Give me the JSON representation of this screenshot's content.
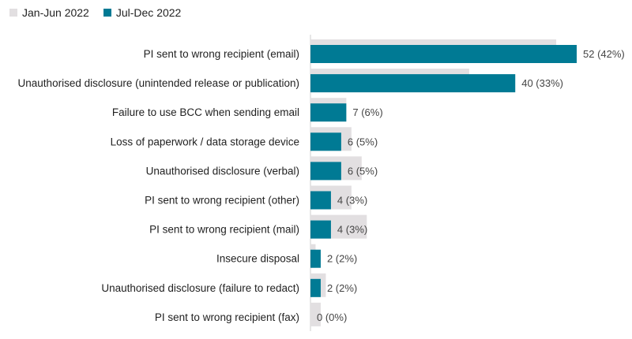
{
  "chart_data": {
    "type": "bar",
    "orientation": "horizontal",
    "legend_position": "top-left",
    "grid": false,
    "categories": [
      "PI sent to wrong recipient (email)",
      "Unauthorised disclosure (unintended release or publication)",
      "Failure to use BCC when sending email",
      "Loss of paperwork / data storage device",
      "Unauthorised disclosure (verbal)",
      "PI sent to wrong recipient (other)",
      "PI sent to wrong recipient (mail)",
      "Insecure disposal",
      "Unauthorised disclosure (failure to redact)",
      "PI sent to wrong recipient (fax)"
    ],
    "series": [
      {
        "name": "Jan-Jun 2022",
        "color": "#e2dfe1",
        "values": [
          48,
          31,
          7,
          8,
          10,
          8,
          11,
          1,
          3,
          2
        ]
      },
      {
        "name": "Jul-Dec 2022",
        "color": "#007a94",
        "values": [
          52,
          40,
          7,
          6,
          6,
          4,
          4,
          2,
          2,
          0
        ]
      }
    ],
    "data_labels": [
      "52 (42%)",
      "40 (33%)",
      "7 (6%)",
      "6 (5%)",
      "6 (5%)",
      "4 (3%)",
      "4 (3%)",
      "2 (2%)",
      "2 (2%)",
      "0 (0%)"
    ],
    "xlim": [
      0,
      52
    ]
  }
}
